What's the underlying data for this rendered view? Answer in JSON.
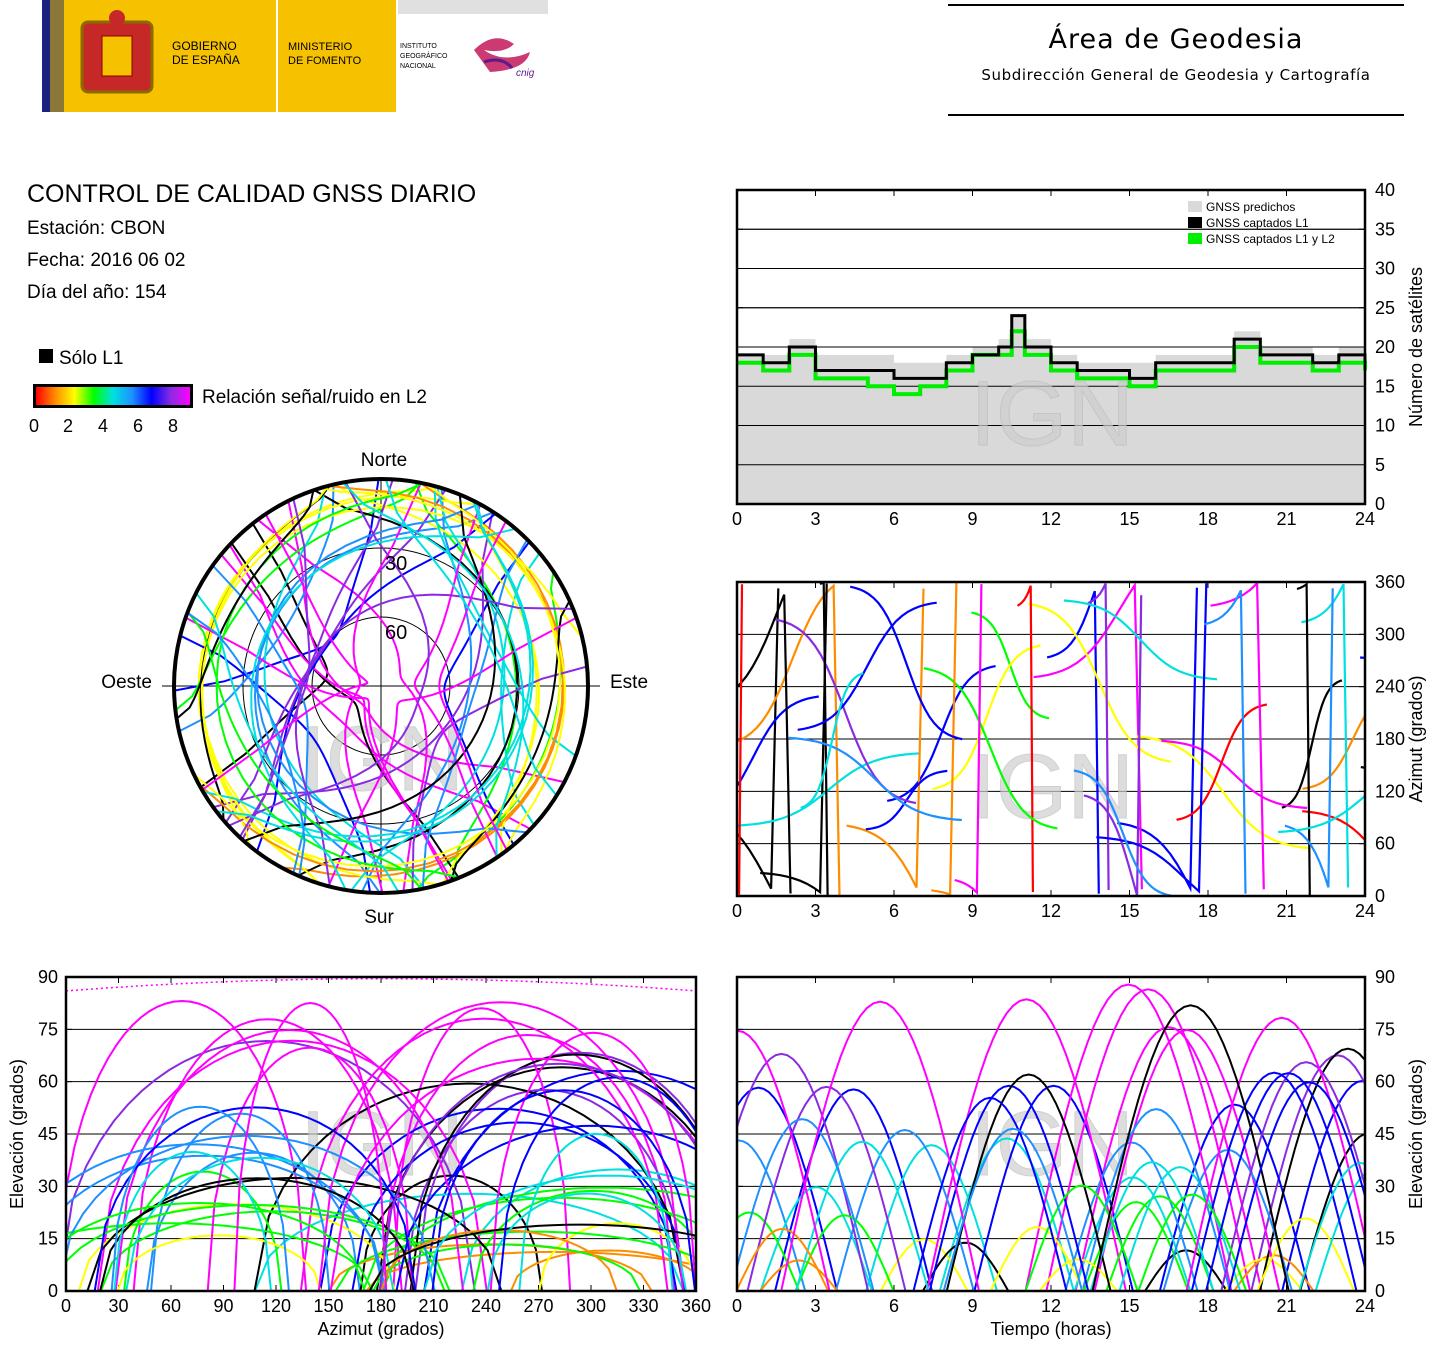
{
  "header": {
    "gov_line1": "GOBIERNO",
    "gov_line2": "DE ESPAÑA",
    "min_line1": "MINISTERIO",
    "min_line2": "DE FOMENTO",
    "ign_line1": "INSTITUTO",
    "ign_line2": "GEOGRÁFICO",
    "ign_line3": "NACIONAL",
    "cnig": "cnig",
    "area_title": "Área de Geodesia",
    "area_subtitle": "Subdirección General de Geodesia y Cartografía"
  },
  "info": {
    "title": "CONTROL DE CALIDAD GNSS DIARIO",
    "station": "Estación: CBON",
    "date": "Fecha: 2016 06 02",
    "doy": "Día del año: 154",
    "l1_only": "Sólo L1",
    "snr_label": "Relación señal/ruido en L2",
    "snr_ticks": [
      "0",
      "2",
      "4",
      "6",
      "8"
    ]
  },
  "watermark": "IGN",
  "colors": {
    "predicted": "#d9d9d9",
    "l1": "#000000",
    "l1l2": "#00ee00",
    "snr_scale": [
      "#ff0000",
      "#ff8c00",
      "#ffff00",
      "#00ff00",
      "#00e0e0",
      "#1e90ff",
      "#0000ff",
      "#8a2be2",
      "#ff00ff"
    ]
  },
  "chart_data": [
    {
      "type": "area",
      "ylabel": "Número de satélites",
      "xlim": [
        0,
        24
      ],
      "ylim": [
        0,
        40
      ],
      "xticks": [
        "0",
        "3",
        "6",
        "9",
        "12",
        "15",
        "18",
        "21",
        "24"
      ],
      "yticks": [
        "0",
        "5",
        "10",
        "15",
        "20",
        "25",
        "30",
        "35",
        "40"
      ],
      "grid": true,
      "legend_position": "top-right",
      "series": [
        {
          "name": "GNSS predichos",
          "x": [
            0,
            1,
            2,
            3,
            4,
            5,
            6,
            7,
            8,
            9,
            10,
            10.5,
            11,
            12,
            13,
            14,
            15,
            16,
            17,
            18,
            19,
            20,
            21,
            22,
            23,
            24
          ],
          "values": [
            19,
            19,
            21,
            19,
            19,
            19,
            18,
            18,
            19,
            20,
            21,
            24,
            21,
            19,
            18,
            18,
            18,
            19,
            19,
            19,
            22,
            20,
            20,
            19,
            20,
            19
          ]
        },
        {
          "name": "GNSS captados L1",
          "x": [
            0,
            1,
            2,
            3,
            4,
            5,
            6,
            7,
            8,
            9,
            10,
            10.5,
            11,
            12,
            13,
            14,
            15,
            16,
            17,
            18,
            19,
            20,
            21,
            22,
            23,
            24
          ],
          "values": [
            19,
            18,
            20,
            17,
            17,
            17,
            16,
            16,
            18,
            19,
            20,
            24,
            20,
            18,
            17,
            17,
            16,
            18,
            18,
            18,
            21,
            19,
            19,
            18,
            19,
            18
          ]
        },
        {
          "name": "GNSS captados L1 y L2",
          "x": [
            0,
            1,
            2,
            3,
            4,
            5,
            6,
            7,
            8,
            9,
            10,
            10.5,
            11,
            12,
            13,
            14,
            15,
            16,
            17,
            18,
            19,
            20,
            21,
            22,
            23,
            24
          ],
          "values": [
            18,
            17,
            19,
            16,
            16,
            15,
            14,
            15,
            17,
            19,
            19,
            22,
            19,
            17,
            16,
            16,
            15,
            17,
            17,
            17,
            20,
            18,
            18,
            17,
            18,
            17
          ]
        }
      ]
    },
    {
      "type": "scatter",
      "ylabel": "Azimut (grados)",
      "xlim": [
        0,
        24
      ],
      "ylim": [
        0,
        360
      ],
      "xticks": [
        "0",
        "3",
        "6",
        "9",
        "12",
        "15",
        "18",
        "21",
        "24"
      ],
      "yticks": [
        "0",
        "60",
        "120",
        "180",
        "240",
        "300",
        "360"
      ],
      "grid": true
    },
    {
      "type": "scatter",
      "xlabel": "Azimut (grados)",
      "ylabel": "Elevación (grados)",
      "xlim": [
        0,
        360
      ],
      "ylim": [
        0,
        90
      ],
      "xticks": [
        "0",
        "30",
        "60",
        "90",
        "120",
        "150",
        "180",
        "210",
        "240",
        "270",
        "300",
        "330",
        "360"
      ],
      "yticks": [
        "0",
        "15",
        "30",
        "45",
        "60",
        "75",
        "90"
      ],
      "grid": true
    },
    {
      "type": "line",
      "xlabel": "Tiempo (horas)",
      "ylabel": "Elevación (grados)",
      "xlim": [
        0,
        24
      ],
      "ylim": [
        0,
        90
      ],
      "xticks": [
        "0",
        "3",
        "6",
        "9",
        "12",
        "15",
        "18",
        "21",
        "24"
      ],
      "yticks": [
        "0",
        "15",
        "30",
        "45",
        "60",
        "75",
        "90"
      ],
      "grid": true
    },
    {
      "type": "scatter",
      "compass": {
        "north": "Norte",
        "south": "Sur",
        "east": "Este",
        "west": "Oeste"
      },
      "rings": [
        "30",
        "60"
      ]
    }
  ]
}
